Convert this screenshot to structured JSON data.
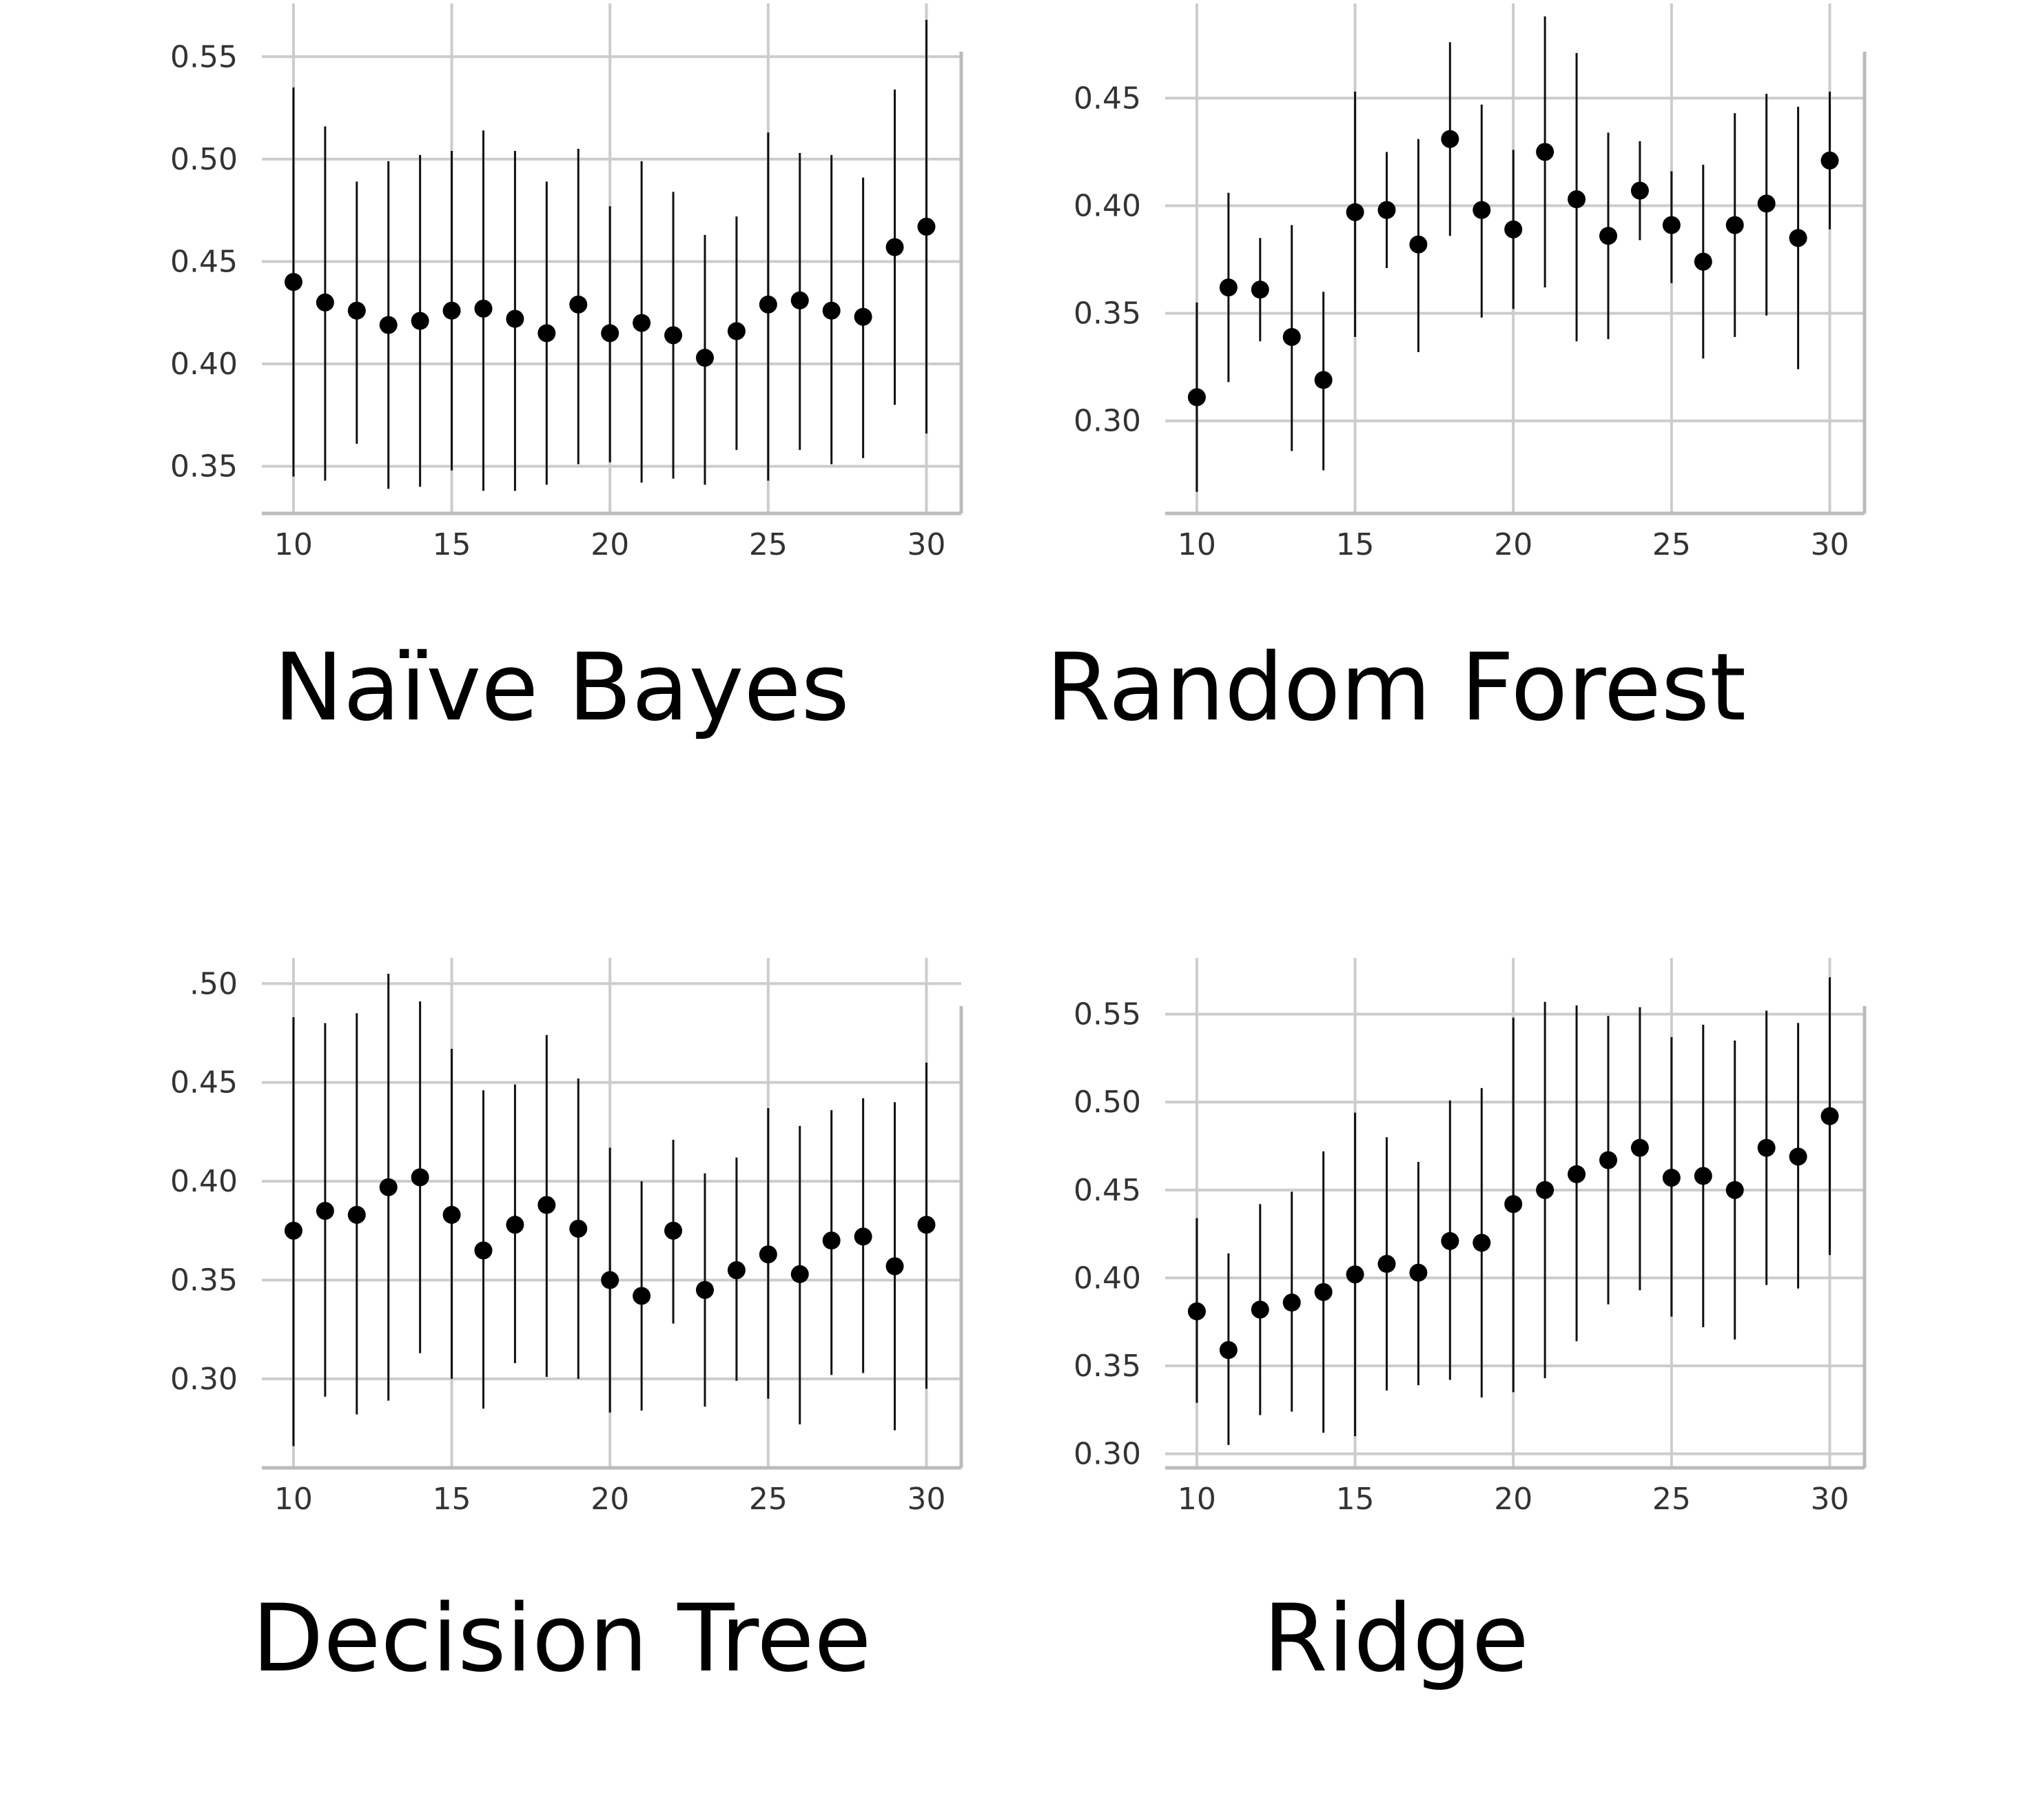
{
  "chart_data": [
    {
      "type": "scatter",
      "title": "Naïve Bayes",
      "x": [
        10,
        11,
        12,
        13,
        14,
        15,
        16,
        17,
        18,
        19,
        20,
        21,
        22,
        23,
        24,
        25,
        26,
        27,
        28,
        29,
        30
      ],
      "xticks": [
        10,
        15,
        20,
        25,
        30
      ],
      "xtick_labels": [
        "10",
        "15",
        "20",
        "25",
        "30"
      ],
      "xlim": [
        9.0,
        31.1
      ],
      "ylim": [
        0.327,
        0.576
      ],
      "yticks": [
        0.35,
        0.4,
        0.45,
        0.5,
        0.55
      ],
      "ytick_labels": [
        "0.35",
        "0.40",
        "0.45",
        "0.50",
        "0.55"
      ],
      "series": [
        {
          "values": [
            0.44,
            0.43,
            0.426,
            0.419,
            0.421,
            0.426,
            0.427,
            0.422,
            0.415,
            0.429,
            0.415,
            0.42,
            0.414,
            0.403,
            0.416,
            0.429,
            0.431,
            0.426,
            0.423,
            0.457,
            0.467
          ],
          "lower": [
            0.345,
            0.343,
            0.361,
            0.339,
            0.34,
            0.348,
            0.338,
            0.338,
            0.341,
            0.351,
            0.352,
            0.342,
            0.344,
            0.341,
            0.358,
            0.343,
            0.358,
            0.351,
            0.354,
            0.38,
            0.366
          ],
          "upper": [
            0.535,
            0.516,
            0.489,
            0.499,
            0.502,
            0.504,
            0.514,
            0.504,
            0.489,
            0.505,
            0.477,
            0.499,
            0.484,
            0.463,
            0.472,
            0.513,
            0.503,
            0.502,
            0.491,
            0.534,
            0.568
          ]
        }
      ],
      "grid": true,
      "legend": "none"
    },
    {
      "type": "scatter",
      "title": "Random Forest",
      "x": [
        10,
        11,
        12,
        13,
        14,
        15,
        16,
        17,
        18,
        19,
        20,
        21,
        22,
        23,
        24,
        25,
        26,
        27,
        28,
        29,
        30
      ],
      "xticks": [
        10,
        15,
        20,
        25,
        30
      ],
      "xtick_labels": [
        "10",
        "15",
        "20",
        "25",
        "30"
      ],
      "xlim": [
        9.0,
        31.1
      ],
      "ylim": [
        0.257,
        0.494
      ],
      "yticks": [
        0.3,
        0.35,
        0.4,
        0.45
      ],
      "ytick_labels": [
        "0.30",
        "0.35",
        "0.40",
        "0.45"
      ],
      "series": [
        {
          "values": [
            0.311,
            0.362,
            0.361,
            0.339,
            0.319,
            0.397,
            0.398,
            0.382,
            0.431,
            0.398,
            0.389,
            0.425,
            0.403,
            0.386,
            0.407,
            0.391,
            0.374,
            0.391,
            0.401,
            0.385,
            0.421
          ],
          "lower": [
            0.267,
            0.318,
            0.337,
            0.286,
            0.277,
            0.339,
            0.371,
            0.332,
            0.386,
            0.348,
            0.352,
            0.362,
            0.337,
            0.338,
            0.384,
            0.364,
            0.329,
            0.339,
            0.349,
            0.324,
            0.389
          ],
          "upper": [
            0.355,
            0.406,
            0.385,
            0.391,
            0.36,
            0.453,
            0.425,
            0.431,
            0.476,
            0.447,
            0.426,
            0.488,
            0.471,
            0.434,
            0.43,
            0.416,
            0.419,
            0.443,
            0.452,
            0.446,
            0.453
          ]
        }
      ],
      "grid": true,
      "legend": "none"
    },
    {
      "type": "scatter",
      "title": "Decision Tree",
      "x": [
        10,
        11,
        12,
        13,
        14,
        15,
        16,
        17,
        18,
        19,
        20,
        21,
        22,
        23,
        24,
        25,
        26,
        27,
        28,
        29,
        30
      ],
      "xticks": [
        10,
        15,
        20,
        25,
        30
      ],
      "xtick_labels": [
        "10",
        "15",
        "20",
        "25",
        "30"
      ],
      "xlim": [
        9.0,
        31.1
      ],
      "ylim": [
        0.255,
        0.513
      ],
      "yticks": [
        0.3,
        0.35,
        0.4,
        0.45,
        0.5
      ],
      "ytick_labels": [
        "0.30",
        "0.35",
        "0.40",
        "0.45",
        ".50"
      ],
      "series": [
        {
          "values": [
            0.375,
            0.385,
            0.383,
            0.397,
            0.402,
            0.383,
            0.365,
            0.378,
            0.388,
            0.376,
            0.35,
            0.342,
            0.375,
            0.345,
            0.355,
            0.363,
            0.353,
            0.37,
            0.372,
            0.357,
            0.378
          ],
          "lower": [
            0.266,
            0.291,
            0.282,
            0.289,
            0.313,
            0.3,
            0.285,
            0.308,
            0.301,
            0.3,
            0.283,
            0.284,
            0.328,
            0.286,
            0.299,
            0.29,
            0.277,
            0.302,
            0.303,
            0.274,
            0.295
          ],
          "upper": [
            0.483,
            0.48,
            0.485,
            0.505,
            0.491,
            0.467,
            0.446,
            0.449,
            0.474,
            0.452,
            0.417,
            0.4,
            0.421,
            0.404,
            0.412,
            0.437,
            0.428,
            0.436,
            0.442,
            0.44,
            0.46
          ]
        }
      ],
      "grid": true,
      "legend": "none"
    },
    {
      "type": "scatter",
      "title": "Ridge",
      "x": [
        10,
        11,
        12,
        13,
        14,
        15,
        16,
        17,
        18,
        19,
        20,
        21,
        22,
        23,
        24,
        25,
        26,
        27,
        28,
        29,
        30
      ],
      "xticks": [
        10,
        15,
        20,
        25,
        30
      ],
      "xtick_labels": [
        "10",
        "15",
        "20",
        "25",
        "30"
      ],
      "xlim": [
        9.0,
        31.1
      ],
      "ylim": [
        0.292,
        0.582
      ],
      "yticks": [
        0.3,
        0.35,
        0.4,
        0.45,
        0.5,
        0.55
      ],
      "ytick_labels": [
        "0.30",
        "0.35",
        "0.40",
        "0.45",
        "0.50",
        "0.55"
      ],
      "series": [
        {
          "values": [
            0.381,
            0.359,
            0.382,
            0.386,
            0.392,
            0.402,
            0.408,
            0.403,
            0.421,
            0.42,
            0.442,
            0.45,
            0.459,
            0.467,
            0.474,
            0.457,
            0.458,
            0.45,
            0.474,
            0.469,
            0.492
          ],
          "lower": [
            0.329,
            0.305,
            0.322,
            0.324,
            0.312,
            0.31,
            0.336,
            0.339,
            0.342,
            0.332,
            0.335,
            0.343,
            0.364,
            0.385,
            0.393,
            0.378,
            0.372,
            0.365,
            0.396,
            0.394,
            0.413
          ],
          "upper": [
            0.434,
            0.414,
            0.442,
            0.449,
            0.472,
            0.494,
            0.48,
            0.466,
            0.501,
            0.508,
            0.548,
            0.557,
            0.555,
            0.549,
            0.554,
            0.537,
            0.544,
            0.535,
            0.552,
            0.545,
            0.571
          ]
        }
      ],
      "grid": true,
      "legend": "none"
    }
  ]
}
